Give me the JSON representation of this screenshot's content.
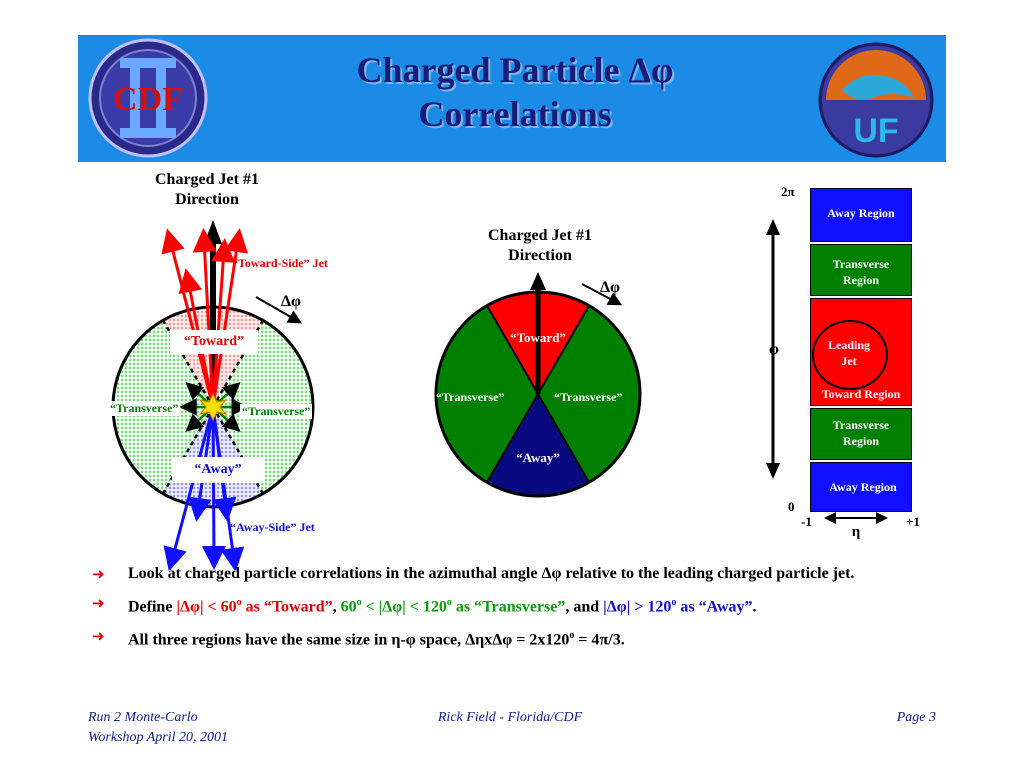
{
  "slide": {
    "title_line1": "Charged Particle Δφ",
    "title_line2": "Correlations",
    "logo_left_text": "CDF",
    "logo_right_text": "UF"
  },
  "left_diagram": {
    "jet_label_line1": "Charged Jet #1",
    "jet_label_line2": "Direction",
    "toward_side_jet": "“Toward-Side” Jet",
    "away_side_jet": "“Away-Side” Jet",
    "dphi": "Δφ",
    "toward": "“Toward”",
    "transverse_left": "“Transverse”",
    "transverse_right": "“Transverse”",
    "away": "“Away”"
  },
  "middle_diagram": {
    "jet_label_line1": "Charged Jet #1",
    "jet_label_line2": "Direction",
    "dphi": "Δφ",
    "toward": "“Toward”",
    "transverse_left": "“Transverse”",
    "transverse_right": "“Transverse”",
    "away": "“Away”"
  },
  "right_diagram": {
    "top_axis": "2π",
    "bottom_axis": "0",
    "phi_label": "φ",
    "eta_label": "η",
    "eta_min": "-1",
    "eta_max": "+1",
    "away_region_top": "Away Region",
    "transverse_top_line1": "Transverse",
    "transverse_top_line2": "Region",
    "leading_jet_line1": "Leading",
    "leading_jet_line2": "Jet",
    "toward_region": "Toward Region",
    "transverse_bottom_line1": "Transverse",
    "transverse_bottom_line2": "Region",
    "away_region_bottom": "Away Region"
  },
  "bullets": {
    "b1": "Look at charged particle correlations in the azimuthal angle Δφ relative to the leading charged particle jet.",
    "b2_define": "Define ",
    "b2_toward_a": "|Δφ| < 60",
    "b2_toward_b": " as “Toward”",
    "b2_sep1": ", ",
    "b2_trans_a": "60",
    "b2_trans_b": " < |Δφ| < 120",
    "b2_trans_c": " as “Transverse”",
    "b2_sep2": ", and ",
    "b2_away_a": "|Δφ| > 120",
    "b2_away_b": " as “Away”",
    "b2_end": ".",
    "b3_a": "All three regions have the same size in η-φ space, ΔηxΔφ = 2x120",
    "b3_b": " = 4π/3.",
    "degree": "o"
  },
  "footer": {
    "left_line1": "Run 2 Monte-Carlo",
    "left_line2": "Workshop April 20, 2001",
    "center": "Rick Field - Florida/CDF",
    "right": "Page 3"
  },
  "colors": {
    "header": "#1b8be6",
    "title": "#1b1b7a",
    "red": "#ff0000",
    "green": "#008000",
    "navy": "#0a0a80",
    "blue": "#1010ff"
  }
}
